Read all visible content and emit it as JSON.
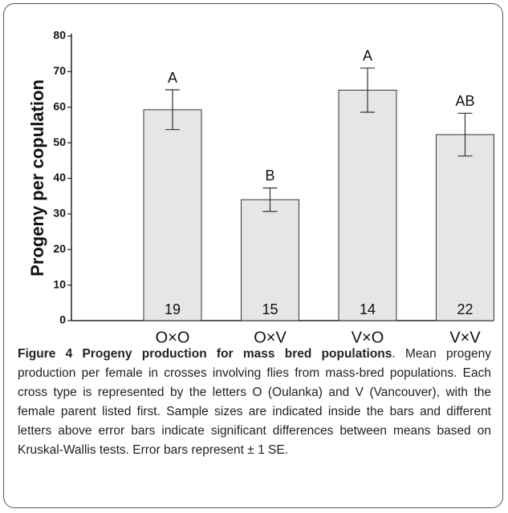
{
  "chart_data": {
    "type": "bar",
    "ylabel": "Progeny per copulation",
    "categories": [
      "O×O",
      "O×V",
      "V×O",
      "V×V"
    ],
    "values": [
      59.3,
      34,
      64.8,
      52.3
    ],
    "errors": [
      5.6,
      3.3,
      6.2,
      6
    ],
    "letters": [
      "A",
      "B",
      "A",
      "AB"
    ],
    "sample_sizes": [
      19,
      15,
      14,
      22
    ],
    "color": "#e6e6e6",
    "ylim": [
      0,
      80
    ],
    "yticks": [
      0,
      10,
      20,
      30,
      40,
      50,
      60,
      70,
      80
    ],
    "grid": false
  },
  "caption": {
    "label": "Figure 4",
    "title": "Progeny production for mass bred populations",
    "text": ". Mean progeny production per female in crosses involving flies from mass-bred populations. Each cross type is represented by the letters O (Oulanka) and V (Vancouver), with the female parent listed first. Sample sizes are indicated inside the bars and different letters above error bars indicate significant differences between means based on Kruskal-Wallis tests. Error bars represent ± 1 SE."
  }
}
